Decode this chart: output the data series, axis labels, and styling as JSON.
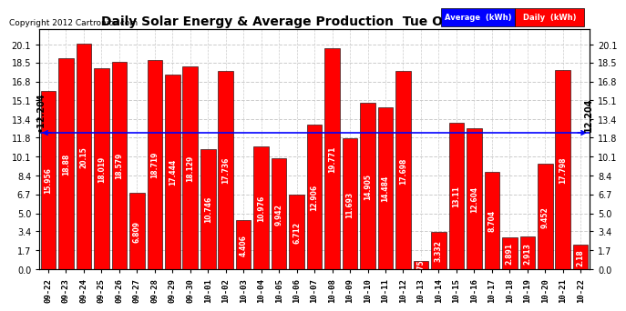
{
  "title": "Daily Solar Energy & Average Production  Tue Oct 23  07:31",
  "copyright": "Copyright 2012 Cartronics.com",
  "average_value": 12.204,
  "bar_color": "#FF0000",
  "average_line_color": "#0000FF",
  "background_color": "#FFFFFF",
  "categories": [
    "09-22",
    "09-23",
    "09-24",
    "09-25",
    "09-26",
    "09-27",
    "09-28",
    "09-29",
    "09-30",
    "10-01",
    "10-02",
    "10-03",
    "10-04",
    "10-05",
    "10-06",
    "10-07",
    "10-08",
    "10-09",
    "10-10",
    "10-11",
    "10-12",
    "10-13",
    "10-14",
    "10-15",
    "10-16",
    "10-17",
    "10-18",
    "10-19",
    "10-20",
    "10-21",
    "10-22"
  ],
  "values": [
    15.956,
    18.88,
    20.15,
    18.019,
    18.579,
    6.809,
    18.719,
    17.444,
    18.129,
    10.746,
    17.736,
    4.406,
    10.976,
    9.942,
    6.712,
    12.906,
    19.771,
    11.693,
    14.905,
    14.484,
    17.698,
    0.755,
    3.332,
    13.11,
    12.604,
    8.704,
    2.891,
    2.913,
    9.452,
    17.798,
    2.18
  ],
  "yticks": [
    0.0,
    1.7,
    3.4,
    5.0,
    6.7,
    8.4,
    10.1,
    11.8,
    13.4,
    15.1,
    16.8,
    18.5,
    20.1
  ],
  "grid_color": "#CCCCCC",
  "bar_edge_color": "#000000",
  "value_fontsize": 5.5,
  "xtick_fontsize": 6.5,
  "ytick_fontsize": 7,
  "legend_avg_color": "#0000FF",
  "legend_daily_color": "#FF0000",
  "avg_label_fontsize": 7,
  "ylim_max": 21.5
}
